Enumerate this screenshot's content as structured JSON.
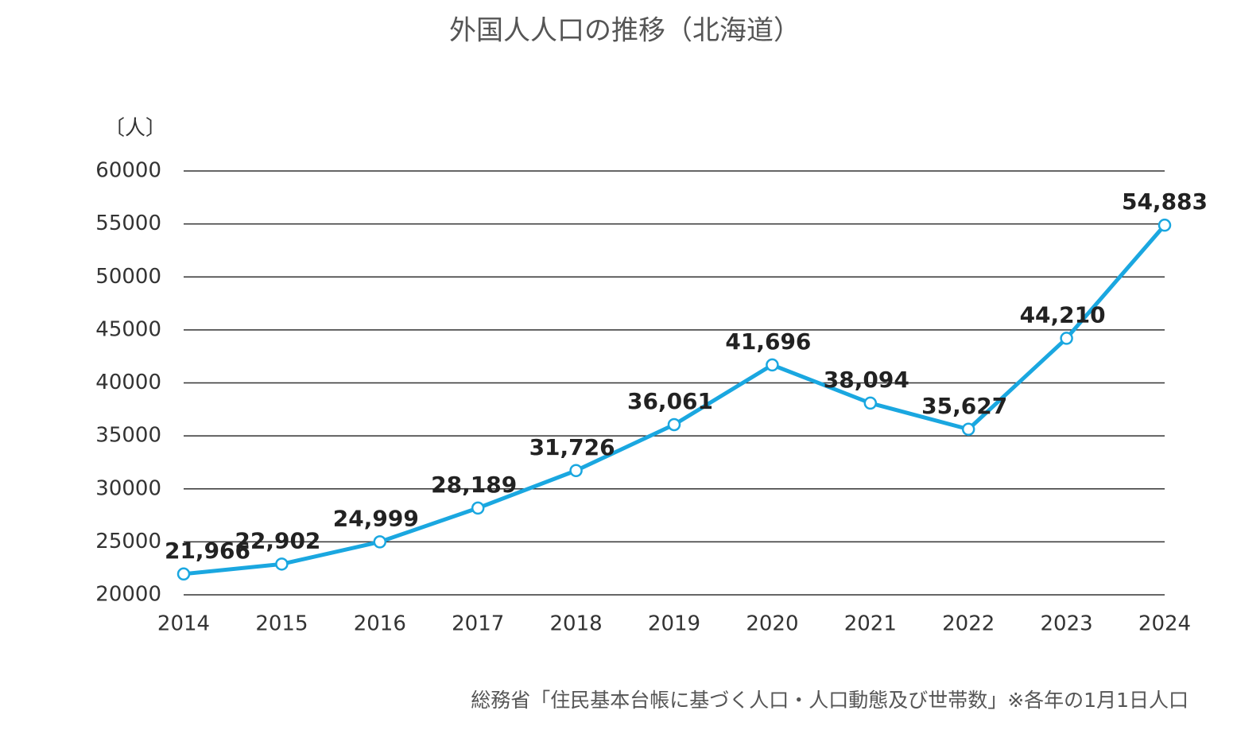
{
  "chart_data": {
    "type": "line",
    "title": "外国人人口の推移（北海道）",
    "y_label": "〔人〕",
    "source": "総務省「住民基本台帳に基づく人口・人口動態及び世帯数」※各年の1月1日人口",
    "categories": [
      "2014",
      "2015",
      "2016",
      "2017",
      "2018",
      "2019",
      "2020",
      "2021",
      "2022",
      "2023",
      "2024"
    ],
    "series": [
      {
        "name": "外国人人口",
        "color": "#1aa7e0",
        "values": [
          21966,
          22902,
          24999,
          28189,
          31726,
          36061,
          41696,
          38094,
          35627,
          44210,
          54883
        ],
        "value_labels": [
          "21,966",
          "22,902",
          "24,999",
          "28,189",
          "31,726",
          "36,061",
          "41,696",
          "38,094",
          "35,627",
          "44,210",
          "54,883"
        ]
      }
    ],
    "ylim": [
      20000,
      60000
    ],
    "yticks": [
      20000,
      25000,
      30000,
      35000,
      40000,
      45000,
      50000,
      55000,
      60000
    ],
    "grid": true
  }
}
